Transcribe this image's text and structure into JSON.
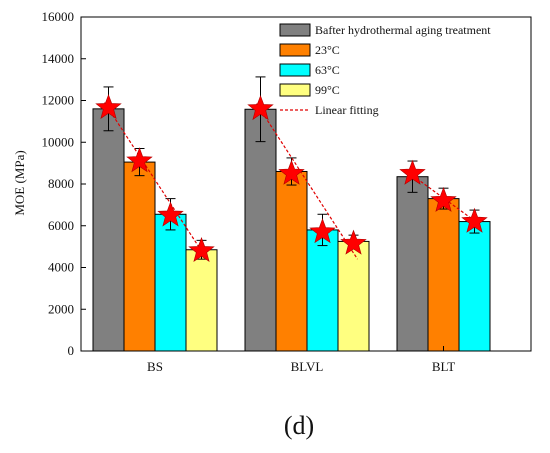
{
  "chart_data": {
    "type": "bar",
    "categories": [
      "BS",
      "BLVL",
      "BLT"
    ],
    "ylabel": "MOE (MPa)",
    "xlabel": "",
    "ylim": [
      0,
      16000
    ],
    "yticks": [
      0,
      2000,
      4000,
      6000,
      8000,
      10000,
      12000,
      14000,
      16000
    ],
    "legend_position": "top-right",
    "grid": false,
    "series": [
      {
        "name": "Bafter hydrothermal aging treatment",
        "color": "#808080",
        "values": [
          11600,
          11580,
          8350
        ],
        "errors": [
          1050,
          1550,
          750
        ]
      },
      {
        "name": "23°C",
        "color": "#ff8000",
        "values": [
          9050,
          8600,
          7300
        ],
        "errors": [
          650,
          650,
          500
        ]
      },
      {
        "name": "63°C",
        "color": "#00ffff",
        "values": [
          6550,
          5800,
          6200
        ],
        "errors": [
          750,
          750,
          550
        ]
      },
      {
        "name": "99°C",
        "color": "#ffff80",
        "values": [
          4850,
          5250,
          null
        ],
        "errors": [
          450,
          300,
          null
        ]
      }
    ],
    "fitting": {
      "name": "Linear fitting",
      "color": "#e00000",
      "star_color": "#ff0000",
      "points": [
        {
          "category": "BS",
          "values": [
            11650,
            9100,
            6500,
            4800
          ]
        },
        {
          "category": "BLVL",
          "values": [
            11600,
            8500,
            5700,
            5150
          ]
        },
        {
          "category": "BLT",
          "values": [
            8500,
            7200,
            6200
          ]
        }
      ],
      "lines": [
        {
          "category": "BS",
          "from": 11900,
          "to": 4500
        },
        {
          "category": "BLVL",
          "from": 11850,
          "to": 4400
        },
        {
          "category": "BLT",
          "from": 8550,
          "to": 6100
        }
      ]
    }
  },
  "caption": "(d)"
}
